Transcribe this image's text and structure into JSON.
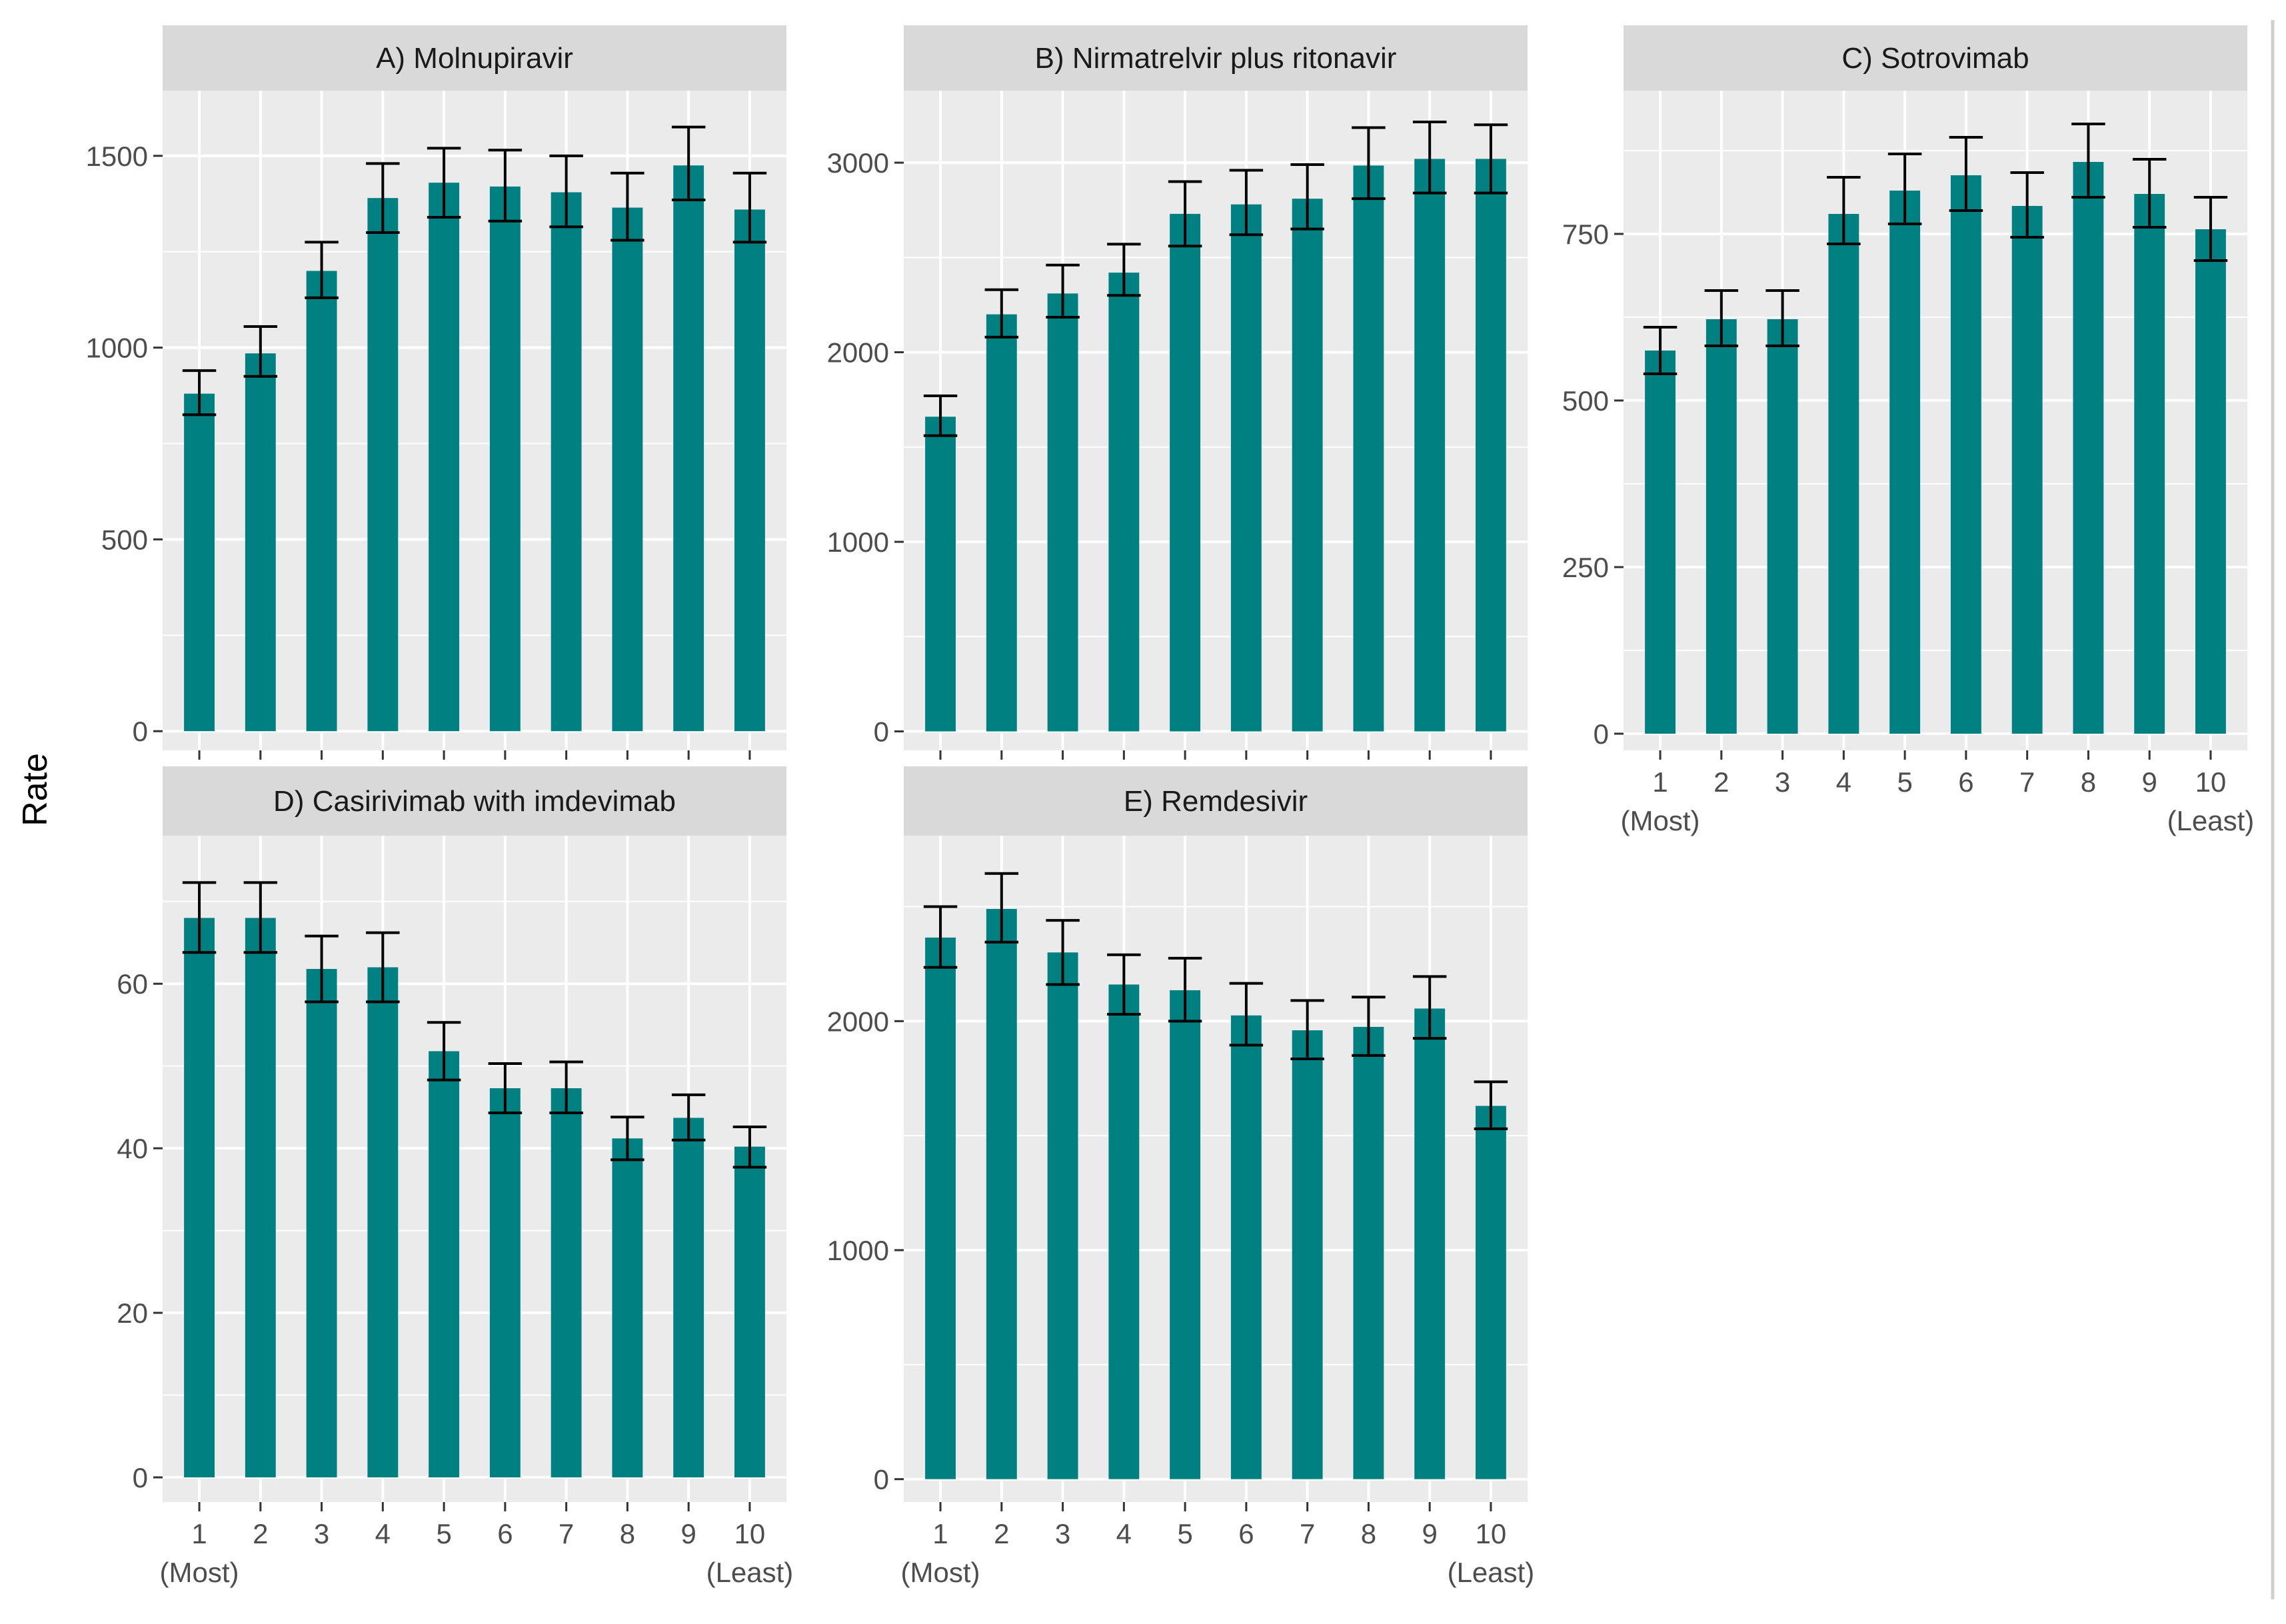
{
  "figure": {
    "ylabel": "Rate",
    "bar_color": "#008080",
    "panel_background": "#ebebeb",
    "strip_background": "#d9d9d9",
    "grid_color": "#ffffff",
    "errorbar_color": "#000000",
    "right_border_color": "#cfcfcf"
  },
  "chart_data": [
    {
      "type": "bar",
      "title": "A) Molnupiravir",
      "categories": [
        "1",
        "2",
        "3",
        "4",
        "5",
        "6",
        "7",
        "8",
        "9",
        "10"
      ],
      "values": [
        880,
        985,
        1200,
        1390,
        1430,
        1420,
        1405,
        1365,
        1475,
        1360
      ],
      "lower": [
        825,
        925,
        1130,
        1300,
        1340,
        1330,
        1315,
        1280,
        1385,
        1275
      ],
      "upper": [
        940,
        1055,
        1275,
        1480,
        1520,
        1515,
        1500,
        1455,
        1575,
        1455
      ],
      "ylim": [
        -50,
        1670
      ],
      "yticks": [
        0,
        500,
        1000,
        1500
      ],
      "show_x_axis": false,
      "x_sublabels": [
        "",
        ""
      ]
    },
    {
      "type": "bar",
      "title": "B) Nirmatrelvir plus ritonavir",
      "categories": [
        "1",
        "2",
        "3",
        "4",
        "5",
        "6",
        "7",
        "8",
        "9",
        "10"
      ],
      "values": [
        1660,
        2200,
        2310,
        2420,
        2730,
        2780,
        2810,
        2985,
        3020,
        3020
      ],
      "lower": [
        1560,
        2080,
        2185,
        2300,
        2560,
        2620,
        2650,
        2810,
        2840,
        2840
      ],
      "upper": [
        1770,
        2330,
        2460,
        2570,
        2900,
        2960,
        2990,
        3185,
        3215,
        3200
      ],
      "ylim": [
        -100,
        3380
      ],
      "yticks": [
        0,
        1000,
        2000,
        3000
      ],
      "show_x_axis": false,
      "x_sublabels": [
        "",
        ""
      ]
    },
    {
      "type": "bar",
      "title": "C) Sotrovimab",
      "categories": [
        "1",
        "2",
        "3",
        "4",
        "5",
        "6",
        "7",
        "8",
        "9",
        "10"
      ],
      "values": [
        575,
        622,
        622,
        780,
        815,
        838,
        792,
        858,
        810,
        757
      ],
      "lower": [
        540,
        582,
        582,
        735,
        765,
        785,
        745,
        805,
        760,
        710
      ],
      "upper": [
        610,
        665,
        665,
        835,
        870,
        895,
        842,
        915,
        862,
        805
      ],
      "ylim": [
        -25,
        965
      ],
      "yticks": [
        0,
        250,
        500,
        750
      ],
      "show_x_axis": true,
      "x_sublabels": [
        "(Most)",
        "(Least)"
      ]
    },
    {
      "type": "bar",
      "title": "D) Casirivimab with imdevimab",
      "categories": [
        "1",
        "2",
        "3",
        "4",
        "5",
        "6",
        "7",
        "8",
        "9",
        "10"
      ],
      "values": [
        68,
        68,
        61.8,
        62,
        51.8,
        47.3,
        47.3,
        41.2,
        43.7,
        40.2
      ],
      "lower": [
        63.8,
        63.8,
        57.8,
        57.8,
        48.3,
        44.3,
        44.3,
        38.6,
        41.0,
        37.7
      ],
      "upper": [
        72.3,
        72.3,
        65.8,
        66.2,
        55.3,
        50.3,
        50.5,
        43.8,
        46.5,
        42.6
      ],
      "ylim": [
        -3,
        78
      ],
      "yticks": [
        0,
        20,
        40,
        60
      ],
      "show_x_axis": true,
      "x_sublabels": [
        "(Most)",
        "(Least)"
      ]
    },
    {
      "type": "bar",
      "title": "E) Remdesivir",
      "categories": [
        "1",
        "2",
        "3",
        "4",
        "5",
        "6",
        "7",
        "8",
        "9",
        "10"
      ],
      "values": [
        2365,
        2490,
        2300,
        2160,
        2135,
        2025,
        1960,
        1975,
        2055,
        1630
      ],
      "lower": [
        2235,
        2345,
        2160,
        2030,
        2000,
        1895,
        1835,
        1850,
        1925,
        1530
      ],
      "upper": [
        2500,
        2645,
        2440,
        2290,
        2275,
        2165,
        2090,
        2105,
        2195,
        1735
      ],
      "ylim": [
        -100,
        2810
      ],
      "yticks": [
        0,
        1000,
        2000
      ],
      "show_x_axis": true,
      "x_sublabels": [
        "(Most)",
        "(Least)"
      ]
    }
  ]
}
